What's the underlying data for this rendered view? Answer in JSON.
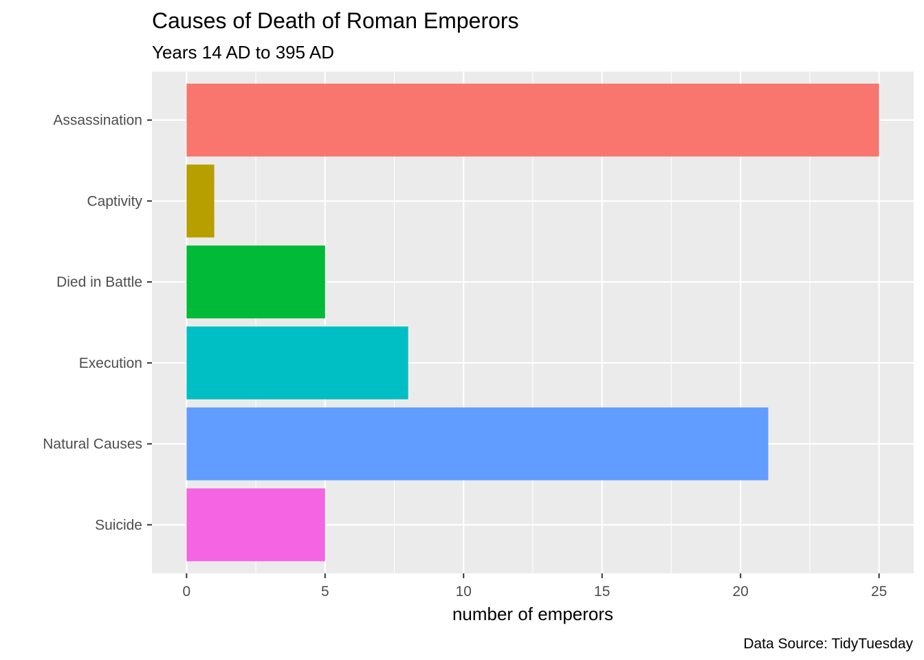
{
  "chart_data": {
    "type": "bar",
    "orientation": "horizontal",
    "title": "Causes of Death of Roman Emperors",
    "subtitle": "Years 14 AD to 395 AD",
    "xlabel": "number of emperors",
    "ylabel": "",
    "caption": "Data Source: TidyTuesday",
    "categories": [
      "Assassination",
      "Captivity",
      "Died in Battle",
      "Execution",
      "Natural Causes",
      "Suicide"
    ],
    "values": [
      25,
      1,
      5,
      8,
      21,
      5
    ],
    "colors": [
      "#F8766D",
      "#B79F00",
      "#00BA38",
      "#00BFC4",
      "#619CFF",
      "#F564E3"
    ],
    "xlim": [
      -1.25,
      26.25
    ],
    "x_ticks": [
      0,
      5,
      10,
      15,
      20,
      25
    ],
    "x_minor_ticks": [
      2.5,
      7.5,
      12.5,
      17.5,
      22.5
    ],
    "grid": true,
    "legend": "none",
    "panel_background": "#EBEBEB"
  }
}
